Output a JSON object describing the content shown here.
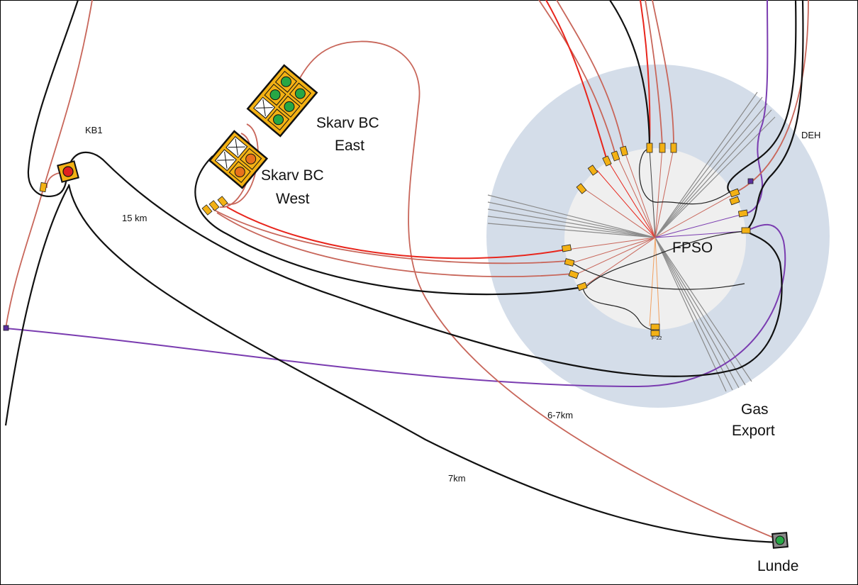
{
  "labels": {
    "kb1": "KB1",
    "skarv_east_1": "Skarv BC",
    "skarv_east_2": "East",
    "skarv_west_1": "Skarv BC",
    "skarv_west_2": "West",
    "fpso": "FPSO",
    "deh": "DEH",
    "dist_15km": "15 km",
    "dist_6_7km": "6-7km",
    "dist_7km": "7km",
    "gas_export_1": "Gas",
    "gas_export_2": "Export",
    "lunde": "Lunde",
    "riser_tag": "F-22"
  },
  "colors": {
    "background": "#ffffff",
    "outer_zone": "#d4dde9",
    "inner_zone": "#efefef",
    "flowline_black": "#111111",
    "flowline_red": "#e8251c",
    "flowline_brown": "#c8665a",
    "flowline_purple": "#7a3cb0",
    "mooring_grey": "#8a8a8a",
    "umbilical_orange": "#f0a060",
    "template_yellow": "#f3b114",
    "well_green": "#27a745",
    "well_orange": "#e8721c",
    "well_red": "#e02020"
  }
}
